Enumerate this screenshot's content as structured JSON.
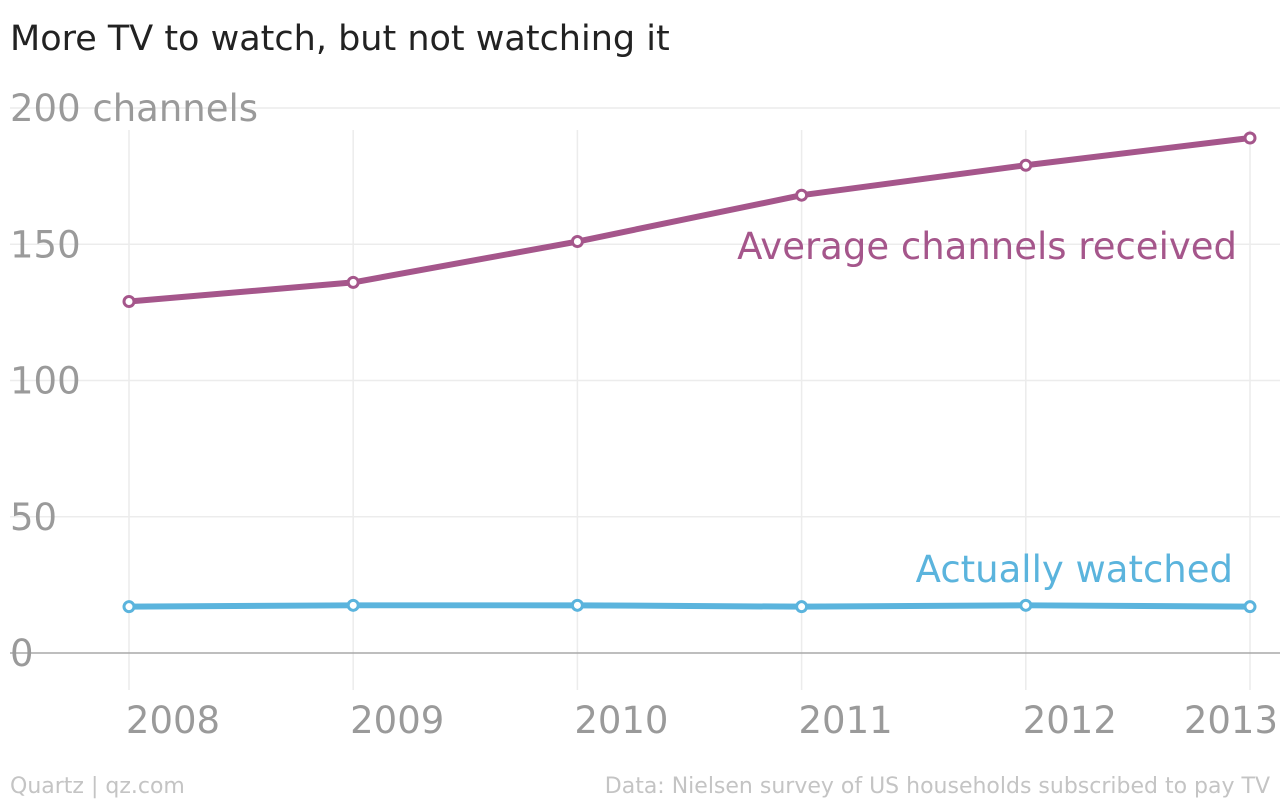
{
  "chart_data": {
    "type": "line",
    "title": "More TV to watch, but not watching it",
    "y_unit_label": "200 channels",
    "x": [
      "2008",
      "2009",
      "2010",
      "2011",
      "2012",
      "2013"
    ],
    "y_ticks": [
      {
        "value": 0,
        "label": "0"
      },
      {
        "value": 50,
        "label": "50"
      },
      {
        "value": 100,
        "label": "100"
      },
      {
        "value": 150,
        "label": "150"
      },
      {
        "value": 200,
        "label": "200 channels"
      }
    ],
    "ylim": [
      0,
      200
    ],
    "grid": true,
    "series": [
      {
        "name": "Average channels received",
        "color": "#a5568b",
        "values": [
          129,
          136,
          151,
          168,
          179,
          189
        ]
      },
      {
        "name": "Actually watched",
        "color": "#5bb4dd",
        "values": [
          17,
          17.5,
          17.5,
          17,
          17.5,
          17
        ]
      }
    ]
  },
  "footer": {
    "source_left": "Quartz | qz.com",
    "source_right": "Data: Nielsen survey of US households subscribed to pay TV"
  }
}
